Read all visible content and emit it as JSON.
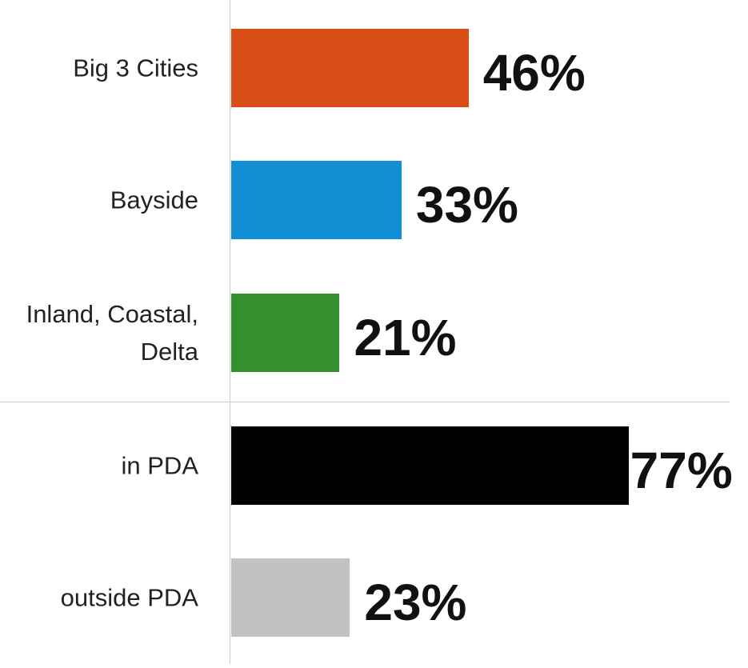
{
  "chart_data": {
    "type": "bar",
    "orientation": "horizontal",
    "categories": [
      "Big 3 Cities",
      "Bayside",
      "Inland, Coastal, Delta",
      "in PDA",
      "outside PDA"
    ],
    "values": [
      46,
      33,
      21,
      77,
      23
    ],
    "value_labels": [
      "46%",
      "33%",
      "21%",
      "77%",
      "23%"
    ],
    "colors": [
      "#d94e16",
      "#128fd4",
      "#34902c",
      "#000000",
      "#c2c2c2"
    ]
  }
}
